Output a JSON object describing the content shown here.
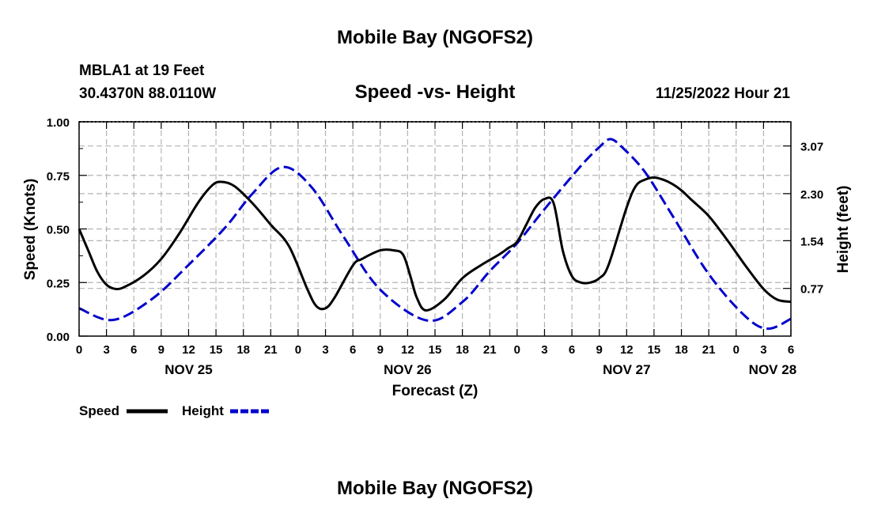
{
  "header": {
    "title": "Mobile Bay (NGOFS2)",
    "station": "MBLA1 at 19 Feet",
    "coords": "30.4370N  88.0110W",
    "subtitle": "Speed -vs- Height",
    "datetime": "11/25/2022 Hour 21"
  },
  "footer_title": "Mobile Bay (NGOFS2)",
  "colors": {
    "speed": "#000000",
    "height": "#0000cc",
    "grid": "#b4b4b4"
  },
  "chart_data": {
    "type": "line",
    "xlabel": "Forecast (Z)",
    "ylabel_left": "Speed (Knots)",
    "ylabel_right": "Height (feet)",
    "x_unit": "forecast hour",
    "xlim": [
      0,
      78
    ],
    "ylim_left": [
      0,
      1.0
    ],
    "ylim_right": [
      0,
      3.46
    ],
    "x_ticks": [
      {
        "hour": 0,
        "label": "0"
      },
      {
        "hour": 3,
        "label": "3"
      },
      {
        "hour": 6,
        "label": "6"
      },
      {
        "hour": 9,
        "label": "9"
      },
      {
        "hour": 12,
        "label": "12"
      },
      {
        "hour": 15,
        "label": "15"
      },
      {
        "hour": 18,
        "label": "18"
      },
      {
        "hour": 21,
        "label": "21"
      },
      {
        "hour": 24,
        "label": "0"
      },
      {
        "hour": 27,
        "label": "3"
      },
      {
        "hour": 30,
        "label": "6"
      },
      {
        "hour": 33,
        "label": "9"
      },
      {
        "hour": 36,
        "label": "12"
      },
      {
        "hour": 39,
        "label": "15"
      },
      {
        "hour": 42,
        "label": "18"
      },
      {
        "hour": 45,
        "label": "21"
      },
      {
        "hour": 48,
        "label": "0"
      },
      {
        "hour": 51,
        "label": "3"
      },
      {
        "hour": 54,
        "label": "6"
      },
      {
        "hour": 57,
        "label": "9"
      },
      {
        "hour": 60,
        "label": "12"
      },
      {
        "hour": 63,
        "label": "15"
      },
      {
        "hour": 66,
        "label": "18"
      },
      {
        "hour": 69,
        "label": "21"
      },
      {
        "hour": 72,
        "label": "0"
      },
      {
        "hour": 75,
        "label": "3"
      },
      {
        "hour": 78,
        "label": "6"
      }
    ],
    "date_labels": [
      {
        "hour": 12,
        "label": "NOV 25"
      },
      {
        "hour": 36,
        "label": "NOV 26"
      },
      {
        "hour": 60,
        "label": "NOV 27"
      },
      {
        "hour": 76,
        "label": "NOV 28"
      }
    ],
    "y_ticks_left": [
      {
        "value": 0,
        "label": "0.00"
      },
      {
        "value": 0.25,
        "label": "0.25"
      },
      {
        "value": 0.5,
        "label": "0.50"
      },
      {
        "value": 0.75,
        "label": "0.75"
      },
      {
        "value": 1.0,
        "label": "1.00"
      }
    ],
    "y_ticks_right": [
      {
        "value": 0.77,
        "label": "0.77"
      },
      {
        "value": 1.54,
        "label": "1.54"
      },
      {
        "value": 2.3,
        "label": "2.30"
      },
      {
        "value": 3.07,
        "label": "3.07"
      }
    ],
    "series": [
      {
        "name": "Speed",
        "axis": "left",
        "style": "solid",
        "x": [
          0,
          1,
          2,
          3,
          4,
          5,
          7,
          9,
          11,
          13,
          14.5,
          15.5,
          17,
          19,
          21,
          23,
          25,
          26,
          27,
          28,
          30,
          31,
          33,
          34.5,
          35.5,
          36.3,
          37,
          38,
          40,
          42,
          44,
          46,
          47,
          48,
          49,
          50,
          51,
          52,
          53,
          54,
          55,
          56,
          57,
          58,
          60,
          61,
          62,
          63,
          64,
          65,
          66,
          67,
          69,
          71,
          73,
          75,
          76.5,
          78
        ],
        "y": [
          0.5,
          0.4,
          0.3,
          0.24,
          0.22,
          0.23,
          0.28,
          0.36,
          0.48,
          0.62,
          0.7,
          0.72,
          0.7,
          0.62,
          0.52,
          0.42,
          0.22,
          0.14,
          0.13,
          0.18,
          0.33,
          0.36,
          0.4,
          0.4,
          0.38,
          0.28,
          0.18,
          0.12,
          0.17,
          0.27,
          0.33,
          0.38,
          0.41,
          0.44,
          0.52,
          0.6,
          0.64,
          0.62,
          0.4,
          0.28,
          0.25,
          0.25,
          0.27,
          0.33,
          0.6,
          0.7,
          0.73,
          0.74,
          0.73,
          0.71,
          0.68,
          0.64,
          0.56,
          0.45,
          0.33,
          0.22,
          0.17,
          0.16
        ]
      },
      {
        "name": "Height",
        "axis": "right",
        "style": "dashed",
        "x": [
          0,
          3.7,
          8,
          12,
          16,
          19,
          22.3,
          25.5,
          29,
          33,
          38.2,
          42,
          45,
          48,
          51,
          55,
          57,
          58.2,
          59.5,
          62,
          65,
          69,
          73,
          75.5,
          78
        ],
        "y": [
          0.45,
          0.26,
          0.6,
          1.15,
          1.75,
          2.3,
          2.73,
          2.4,
          1.6,
          0.75,
          0.25,
          0.55,
          1.05,
          1.5,
          2.05,
          2.75,
          3.05,
          3.18,
          3.05,
          2.65,
          1.95,
          1.0,
          0.32,
          0.12,
          0.28
        ]
      }
    ],
    "legend": [
      {
        "name": "Speed",
        "style": "solid"
      },
      {
        "name": "Height",
        "style": "dashed"
      }
    ],
    "legend_position": "bottom-left",
    "grid": true
  }
}
